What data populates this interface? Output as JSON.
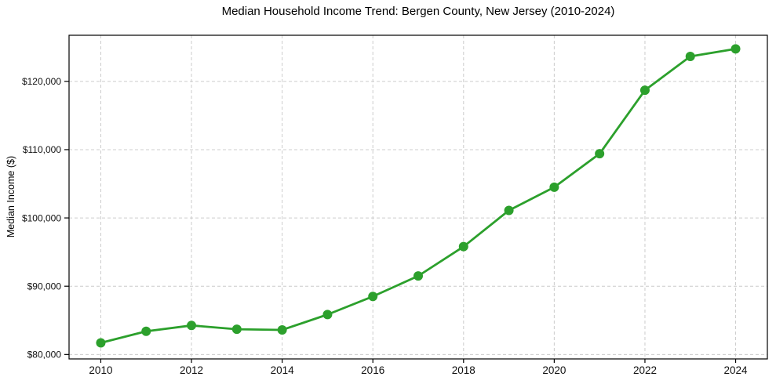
{
  "chart_data": {
    "type": "line",
    "title": "Median Household Income Trend: Bergen County, New Jersey (2010-2024)",
    "xlabel": "",
    "ylabel": "Median Income ($)",
    "x": [
      2010,
      2011,
      2012,
      2013,
      2014,
      2015,
      2016,
      2017,
      2018,
      2019,
      2020,
      2021,
      2022,
      2023,
      2024
    ],
    "values": [
      81700,
      83400,
      84250,
      83700,
      83600,
      85850,
      88500,
      91500,
      95800,
      101100,
      104500,
      109400,
      118700,
      123650,
      124750
    ],
    "series_name": "Median Household Income",
    "xticks": [
      2010,
      2012,
      2014,
      2016,
      2018,
      2020,
      2022,
      2024
    ],
    "xtick_labels": [
      "2010",
      "2012",
      "2014",
      "2016",
      "2018",
      "2020",
      "2022",
      "2024"
    ],
    "yticks": [
      80000,
      90000,
      100000,
      110000,
      120000
    ],
    "ytick_labels": [
      "$80,000",
      "$90,000",
      "$100,000",
      "$110,000",
      "$120,000"
    ],
    "xlim": [
      2009.3,
      2024.7
    ],
    "ylim": [
      79350,
      126750
    ],
    "grid": true,
    "grid_style": "dashed",
    "legend": "none",
    "line_color": "#2ca02c",
    "marker": "circle",
    "grid_color": "#cccccc",
    "axis_color": "#000000"
  }
}
